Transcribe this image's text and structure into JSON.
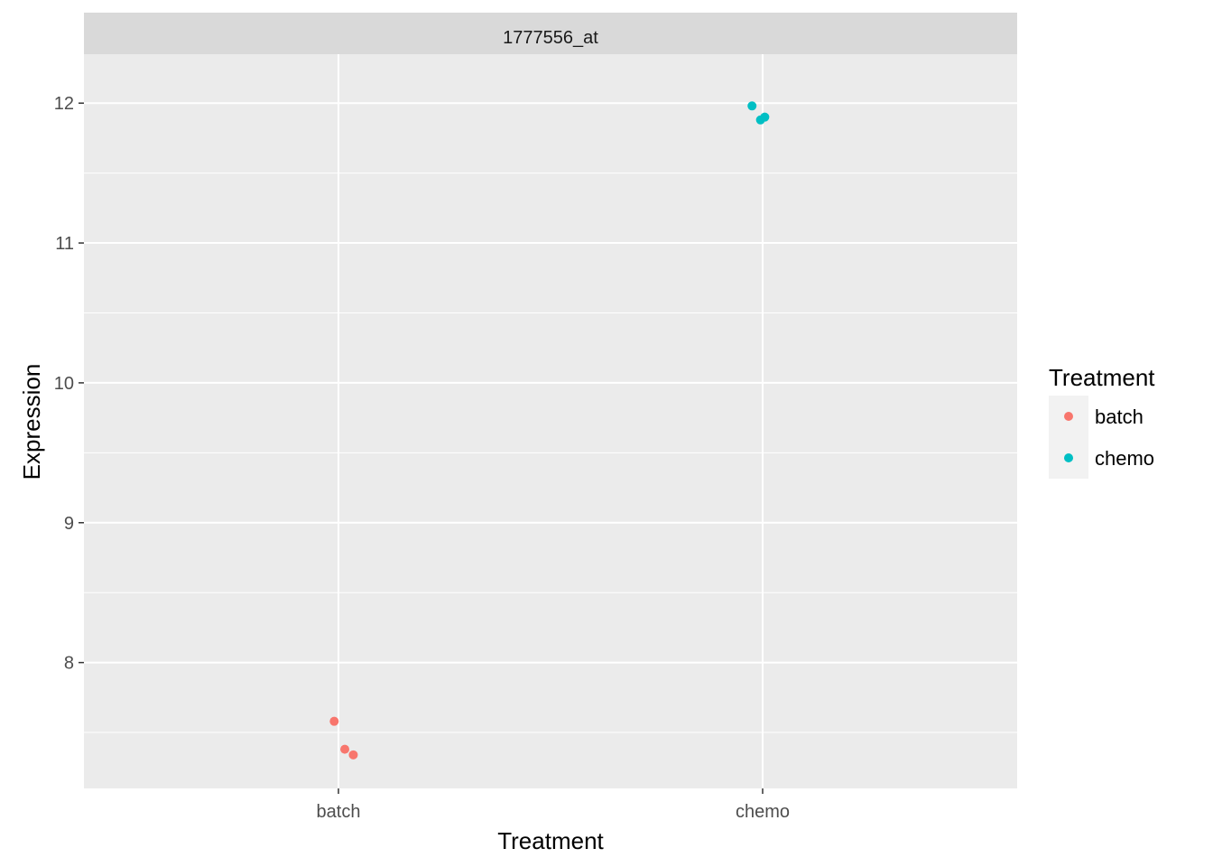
{
  "chart_data": {
    "type": "scatter",
    "facet_title": "1777556_at",
    "xlabel": "Treatment",
    "ylabel": "Expression",
    "categories": [
      "batch",
      "chemo"
    ],
    "ylim": [
      7.1,
      12.35
    ],
    "y_ticks": [
      8,
      9,
      10,
      11,
      12
    ],
    "grid": true,
    "legend": {
      "title": "Treatment",
      "placement": "right",
      "entries": [
        {
          "label": "batch",
          "color": "#F8766D"
        },
        {
          "label": "chemo",
          "color": "#00BFC4"
        }
      ]
    },
    "series": [
      {
        "name": "batch",
        "color": "#F8766D",
        "points": [
          {
            "x": "batch",
            "jitter": -0.01,
            "y": 7.58
          },
          {
            "x": "batch",
            "jitter": 0.015,
            "y": 7.38
          },
          {
            "x": "batch",
            "jitter": 0.035,
            "y": 7.34
          }
        ]
      },
      {
        "name": "chemo",
        "color": "#00BFC4",
        "points": [
          {
            "x": "chemo",
            "jitter": -0.025,
            "y": 11.98
          },
          {
            "x": "chemo",
            "jitter": -0.005,
            "y": 11.88
          },
          {
            "x": "chemo",
            "jitter": 0.005,
            "y": 11.9
          }
        ]
      }
    ]
  }
}
